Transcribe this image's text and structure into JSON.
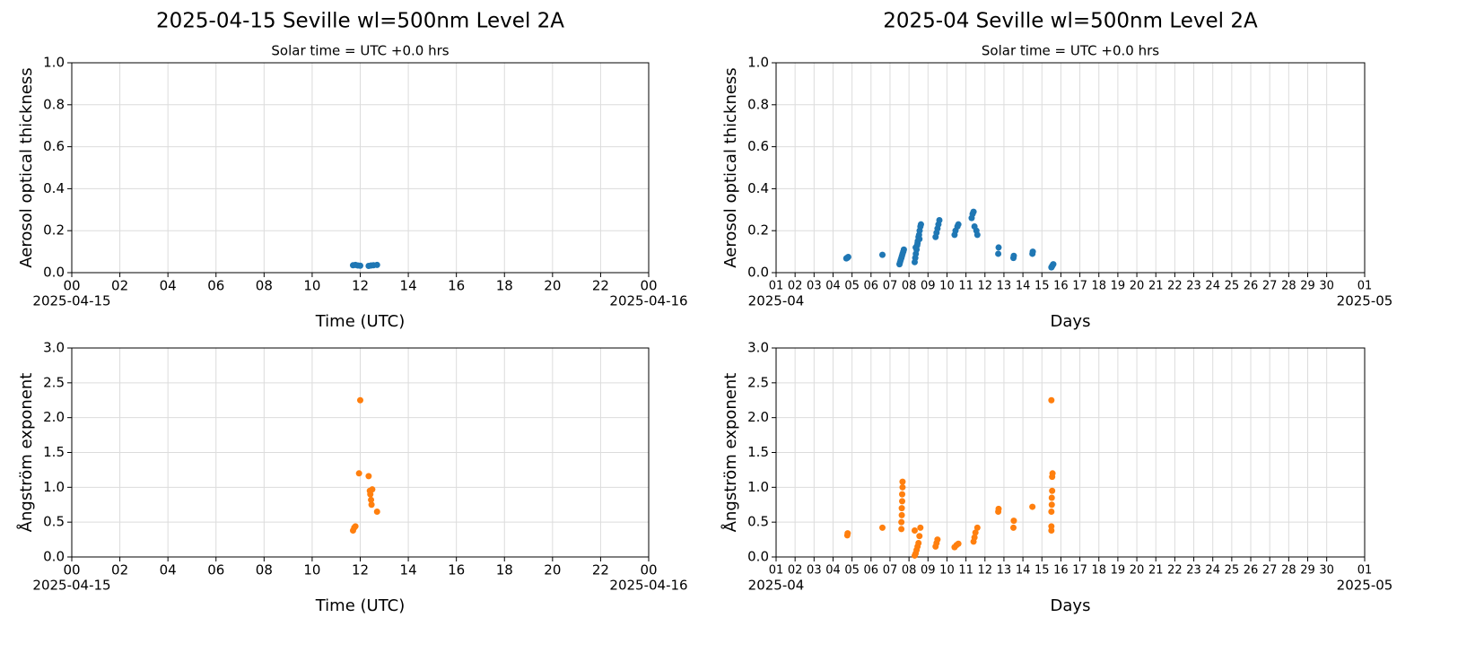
{
  "chart_data": [
    {
      "type": "scatter",
      "title": "2025-04-15  Seville  wl=500nm  Level 2A",
      "subtitle": "Solar time = UTC +0.0 hrs",
      "x_label": "Time (UTC)",
      "y_label": "Aerosol optical thickness",
      "color": "#1f77b4",
      "grid": true,
      "x": [
        11.7,
        11.8,
        11.9,
        12.0,
        12.35,
        12.45,
        12.55,
        12.7
      ],
      "values": [
        0.035,
        0.037,
        0.034,
        0.033,
        0.032,
        0.034,
        0.035,
        0.037
      ],
      "xlim": [
        0,
        24
      ],
      "ylim": [
        0,
        1
      ],
      "xticks": [
        {
          "value": 0,
          "label": "00"
        },
        {
          "value": 2,
          "label": "02"
        },
        {
          "value": 4,
          "label": "04"
        },
        {
          "value": 6,
          "label": "06"
        },
        {
          "value": 8,
          "label": "08"
        },
        10,
        12,
        14,
        16,
        18,
        20,
        22,
        {
          "value": 24,
          "label": "00"
        }
      ],
      "x_date_labels": [
        {
          "value": 0,
          "label": "2025-04-15"
        },
        {
          "value": 24,
          "label": "2025-04-16"
        }
      ],
      "yticks": [
        {
          "value": 0,
          "label": "0.0"
        },
        0.2,
        0.4,
        0.6,
        0.8,
        {
          "value": 1,
          "label": "1.0"
        }
      ]
    },
    {
      "type": "scatter",
      "title": "2025-04  Seville  wl=500nm  Level 2A",
      "subtitle": "Solar time = UTC +0.0 hrs",
      "x_label": "Days",
      "y_label": "Aerosol optical thickness",
      "color": "#1f77b4",
      "grid": true,
      "x": [
        4.7,
        4.73,
        4.77,
        4.8,
        6.6,
        7.5,
        7.53,
        7.56,
        7.6,
        7.63,
        7.66,
        7.7,
        7.73,
        8.3,
        8.33,
        8.36,
        8.4,
        8.43,
        8.46,
        8.5,
        8.53,
        8.56,
        8.6,
        8.63,
        8.35,
        8.45,
        8.55,
        9.4,
        9.45,
        9.5,
        9.55,
        9.6,
        10.4,
        10.45,
        10.55,
        10.6,
        11.3,
        11.35,
        11.4,
        11.45,
        11.55,
        11.6,
        12.7,
        12.72,
        13.5,
        13.52,
        14.5,
        14.52,
        15.5,
        15.53,
        15.56,
        15.6
      ],
      "values": [
        0.068,
        0.07,
        0.072,
        0.075,
        0.085,
        0.04,
        0.05,
        0.06,
        0.07,
        0.08,
        0.09,
        0.1,
        0.11,
        0.05,
        0.07,
        0.09,
        0.11,
        0.13,
        0.15,
        0.17,
        0.18,
        0.2,
        0.22,
        0.23,
        0.12,
        0.14,
        0.16,
        0.17,
        0.19,
        0.21,
        0.23,
        0.25,
        0.18,
        0.2,
        0.22,
        0.23,
        0.26,
        0.28,
        0.29,
        0.22,
        0.2,
        0.18,
        0.09,
        0.12,
        0.07,
        0.08,
        0.09,
        0.1,
        0.025,
        0.03,
        0.035,
        0.04
      ],
      "xlim": [
        1,
        32
      ],
      "ylim": [
        0,
        1
      ],
      "xticks": [
        {
          "value": 1,
          "label": "01"
        },
        {
          "value": 2,
          "label": "02"
        },
        {
          "value": 3,
          "label": "03"
        },
        {
          "value": 4,
          "label": "04"
        },
        {
          "value": 5,
          "label": "05"
        },
        {
          "value": 6,
          "label": "06"
        },
        {
          "value": 7,
          "label": "07"
        },
        {
          "value": 8,
          "label": "08"
        },
        {
          "value": 9,
          "label": "09"
        },
        10,
        11,
        12,
        13,
        14,
        15,
        16,
        17,
        18,
        19,
        20,
        21,
        22,
        23,
        24,
        25,
        26,
        27,
        28,
        29,
        30,
        {
          "value": 32,
          "label": "01"
        }
      ],
      "x_date_labels": [
        {
          "value": 1,
          "label": "2025-04"
        },
        {
          "value": 32,
          "label": "2025-05"
        }
      ],
      "yticks": [
        {
          "value": 0,
          "label": "0.0"
        },
        0.2,
        0.4,
        0.6,
        0.8,
        {
          "value": 1,
          "label": "1.0"
        }
      ]
    },
    {
      "type": "scatter",
      "x_label": "Time (UTC)",
      "y_label": "Ångström exponent",
      "color": "#ff7f0e",
      "grid": true,
      "x": [
        11.7,
        11.75,
        11.8,
        11.95,
        12.0,
        12.35,
        12.4,
        12.42,
        12.45,
        12.47,
        12.5,
        12.7
      ],
      "values": [
        0.38,
        0.42,
        0.44,
        1.2,
        2.25,
        1.16,
        0.95,
        0.9,
        0.82,
        0.75,
        0.97,
        0.65
      ],
      "xlim": [
        0,
        24
      ],
      "ylim": [
        0,
        3
      ],
      "xticks": [
        {
          "value": 0,
          "label": "00"
        },
        {
          "value": 2,
          "label": "02"
        },
        {
          "value": 4,
          "label": "04"
        },
        {
          "value": 6,
          "label": "06"
        },
        {
          "value": 8,
          "label": "08"
        },
        10,
        12,
        14,
        16,
        18,
        20,
        22,
        {
          "value": 24,
          "label": "00"
        }
      ],
      "x_date_labels": [
        {
          "value": 0,
          "label": "2025-04-15"
        },
        {
          "value": 24,
          "label": "2025-04-16"
        }
      ],
      "yticks": [
        {
          "value": 0,
          "label": "0.0"
        },
        0.5,
        {
          "value": 1,
          "label": "1.0"
        },
        1.5,
        {
          "value": 2,
          "label": "2.0"
        },
        2.5,
        {
          "value": 3,
          "label": "3.0"
        }
      ]
    },
    {
      "type": "scatter",
      "x_label": "Days",
      "y_label": "Ångström exponent",
      "color": "#ff7f0e",
      "grid": true,
      "x": [
        4.75,
        4.77,
        6.6,
        7.6,
        7.6,
        7.62,
        7.62,
        7.64,
        7.64,
        7.66,
        7.66,
        8.3,
        8.35,
        8.4,
        8.45,
        8.5,
        8.55,
        8.3,
        8.6,
        9.4,
        9.45,
        9.5,
        10.4,
        10.5,
        10.6,
        11.4,
        11.45,
        11.5,
        11.6,
        12.7,
        12.72,
        13.5,
        13.52,
        14.5,
        15.5,
        15.5,
        15.5,
        15.52,
        15.52,
        15.54,
        15.54,
        15.56,
        15.5
      ],
      "values": [
        0.31,
        0.34,
        0.42,
        0.4,
        0.5,
        0.6,
        0.7,
        0.8,
        0.9,
        1.0,
        1.08,
        0.02,
        0.05,
        0.1,
        0.15,
        0.2,
        0.3,
        0.38,
        0.42,
        0.15,
        0.2,
        0.25,
        0.14,
        0.17,
        0.19,
        0.22,
        0.28,
        0.35,
        0.42,
        0.65,
        0.69,
        0.42,
        0.52,
        0.72,
        0.38,
        0.44,
        0.65,
        0.75,
        0.85,
        0.95,
        1.15,
        1.2,
        2.25
      ],
      "xlim": [
        1,
        32
      ],
      "ylim": [
        0,
        3
      ],
      "xticks": [
        {
          "value": 1,
          "label": "01"
        },
        {
          "value": 2,
          "label": "02"
        },
        {
          "value": 3,
          "label": "03"
        },
        {
          "value": 4,
          "label": "04"
        },
        {
          "value": 5,
          "label": "05"
        },
        {
          "value": 6,
          "label": "06"
        },
        {
          "value": 7,
          "label": "07"
        },
        {
          "value": 8,
          "label": "08"
        },
        {
          "value": 9,
          "label": "09"
        },
        10,
        11,
        12,
        13,
        14,
        15,
        16,
        17,
        18,
        19,
        20,
        21,
        22,
        23,
        24,
        25,
        26,
        27,
        28,
        29,
        30,
        {
          "value": 32,
          "label": "01"
        }
      ],
      "x_date_labels": [
        {
          "value": 1,
          "label": "2025-04"
        },
        {
          "value": 32,
          "label": "2025-05"
        }
      ],
      "yticks": [
        {
          "value": 0,
          "label": "0.0"
        },
        0.5,
        {
          "value": 1,
          "label": "1.0"
        },
        1.5,
        {
          "value": 2,
          "label": "2.0"
        },
        2.5,
        {
          "value": 3,
          "label": "3.0"
        }
      ]
    }
  ]
}
